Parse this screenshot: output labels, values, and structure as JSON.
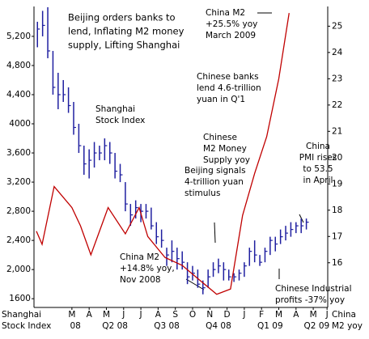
{
  "chart_data": {
    "type": "ohlc_line",
    "title": [
      "Beijing orders banks to",
      "lend, Inflating M2 money",
      "supply, Lifting Shanghai"
    ],
    "ylabel": [
      "Shanghai",
      "Stock Index"
    ],
    "y2label": [
      "China",
      "M2 yoy"
    ],
    "xlim": [
      0,
      17.04
    ],
    "ylim": [
      1480,
      5610
    ],
    "y2lim": [
      14.3,
      25.75
    ],
    "yticks": [
      {
        "value": 5200,
        "label": "5,200"
      },
      {
        "value": 4800,
        "label": "4,800"
      },
      {
        "value": 4400,
        "label": "4,400"
      },
      4000,
      {
        "value": 3600,
        "label": "3,600"
      },
      {
        "value": 3200,
        "label": "3,200"
      },
      {
        "value": 2800,
        "label": "2,800"
      },
      {
        "value": 2400,
        "label": "2,400"
      },
      {
        "value": 2000,
        "label": "2,000"
      },
      1600
    ],
    "y2ticks": [
      25,
      24,
      23,
      22,
      21,
      20,
      19,
      18,
      17,
      16
    ],
    "xticks": [
      {
        "value": 2.2,
        "label": "M"
      },
      {
        "value": 3.2,
        "label": "A"
      },
      {
        "value": 4.2,
        "label": "M"
      },
      {
        "value": 5.2,
        "label": "J"
      },
      {
        "value": 6.2,
        "label": "J"
      },
      {
        "value": 7.2,
        "label": "A"
      },
      {
        "value": 8.2,
        "label": "S"
      },
      {
        "value": 9.2,
        "label": "O"
      },
      {
        "value": 10.2,
        "label": "N"
      },
      {
        "value": 11.2,
        "label": "D"
      },
      {
        "value": 12.2,
        "label": "J"
      },
      {
        "value": 13.2,
        "label": "F"
      },
      {
        "value": 14.2,
        "label": "M"
      },
      {
        "value": 15.2,
        "label": "A"
      },
      {
        "value": 16.2,
        "label": "M"
      },
      {
        "value": 17.0,
        "label": "J"
      }
    ],
    "xticks2": [
      {
        "value": 2.4,
        "label": "08"
      },
      {
        "value": 4.7,
        "label": "Q2 08"
      },
      {
        "value": 7.7,
        "label": "Q3 08"
      },
      {
        "value": 10.7,
        "label": "Q4 08"
      },
      {
        "value": 13.7,
        "label": "Q1 09"
      },
      {
        "value": 16.4,
        "label": "Q2 09"
      }
    ],
    "series": [
      {
        "name": [
          "Shanghai",
          "Stock Index"
        ],
        "color": "#1f1fa0",
        "x": [
          0.2,
          0.5,
          0.8,
          1.1,
          1.4,
          1.7,
          2.0,
          2.3,
          2.6,
          2.9,
          3.2,
          3.5,
          3.8,
          4.1,
          4.4,
          4.7,
          5.0,
          5.3,
          5.6,
          5.9,
          6.2,
          6.5,
          6.8,
          7.1,
          7.4,
          7.7,
          8.0,
          8.3,
          8.6,
          8.9,
          9.2,
          9.5,
          9.8,
          10.1,
          10.4,
          10.7,
          11.0,
          11.3,
          11.6,
          11.9,
          12.2,
          12.5,
          12.8,
          13.1,
          13.4,
          13.7,
          14.0,
          14.3,
          14.6,
          14.9,
          15.2,
          15.5,
          15.8
        ],
        "low": [
          5050,
          5200,
          4900,
          4400,
          4200,
          4300,
          4150,
          3850,
          3600,
          3300,
          3250,
          3400,
          3500,
          3500,
          3450,
          3250,
          3200,
          2800,
          2600,
          2700,
          2650,
          2700,
          2550,
          2350,
          2300,
          2050,
          2100,
          2000,
          2000,
          1800,
          1850,
          1750,
          1660,
          1750,
          1900,
          1950,
          1850,
          1850,
          1830,
          1850,
          1900,
          2050,
          2100,
          2050,
          2100,
          2200,
          2250,
          2350,
          2400,
          2450,
          2500,
          2500,
          2550
        ],
        "high": [
          5400,
          5550,
          5600,
          5000,
          4700,
          4600,
          4500,
          4300,
          4000,
          3700,
          3650,
          3750,
          3700,
          3800,
          3750,
          3600,
          3450,
          3200,
          2900,
          2950,
          2900,
          2900,
          2850,
          2650,
          2550,
          2300,
          2400,
          2300,
          2250,
          2100,
          2050,
          2000,
          1850,
          2000,
          2100,
          2150,
          2100,
          2000,
          1950,
          2000,
          2100,
          2300,
          2400,
          2200,
          2300,
          2450,
          2450,
          2550,
          2600,
          2650,
          2650,
          2700,
          2700
        ],
        "close": [
          5300,
          5350,
          5000,
          4500,
          4400,
          4400,
          4250,
          3950,
          3700,
          3450,
          3500,
          3600,
          3600,
          3700,
          3600,
          3350,
          3300,
          2900,
          2750,
          2850,
          2800,
          2800,
          2600,
          2450,
          2400,
          2200,
          2250,
          2150,
          2100,
          1900,
          1950,
          1800,
          1750,
          1900,
          2000,
          2050,
          2000,
          1900,
          1900,
          1950,
          2050,
          2250,
          2200,
          2100,
          2250,
          2400,
          2350,
          2450,
          2500,
          2550,
          2600,
          2600,
          2650
        ]
      },
      {
        "name": [
          "Chinese",
          "M2 Money",
          "Supply yoy"
        ],
        "color": "#c00000",
        "axis": "y2",
        "x": [
          0.14,
          0.47,
          1.17,
          2.2,
          2.7,
          3.3,
          4.3,
          5.3,
          6.1,
          6.6,
          7.6,
          8.6,
          9.5,
          10.6,
          11.4,
          12.1,
          12.8,
          13.5,
          14.2,
          14.8
        ],
        "values": [
          17.2,
          16.7,
          18.9,
          18.1,
          17.4,
          16.3,
          18.1,
          17.1,
          18.1,
          17.0,
          16.2,
          15.9,
          15.4,
          14.8,
          15.0,
          17.8,
          19.4,
          20.8,
          23.0,
          25.5
        ]
      }
    ],
    "annotations": [
      {
        "lines": [
          "China M2",
          "+25.5% yoy",
          "March 2009"
        ]
      },
      {
        "lines": [
          "Chinese banks",
          "lend 4.6-trillion",
          "yuan in Q'1"
        ]
      },
      {
        "lines": [
          "China",
          "PMI rises",
          "to 53.5",
          "in April"
        ]
      },
      {
        "lines": [
          "Beijing signals",
          "4-trillion yuan",
          "stimulus"
        ]
      },
      {
        "lines": [
          "China M2",
          "+14.8% yoy,",
          "Nov 2008"
        ]
      },
      {
        "lines": [
          "Chinese Industrial",
          "profits -37% yoy"
        ]
      }
    ]
  }
}
